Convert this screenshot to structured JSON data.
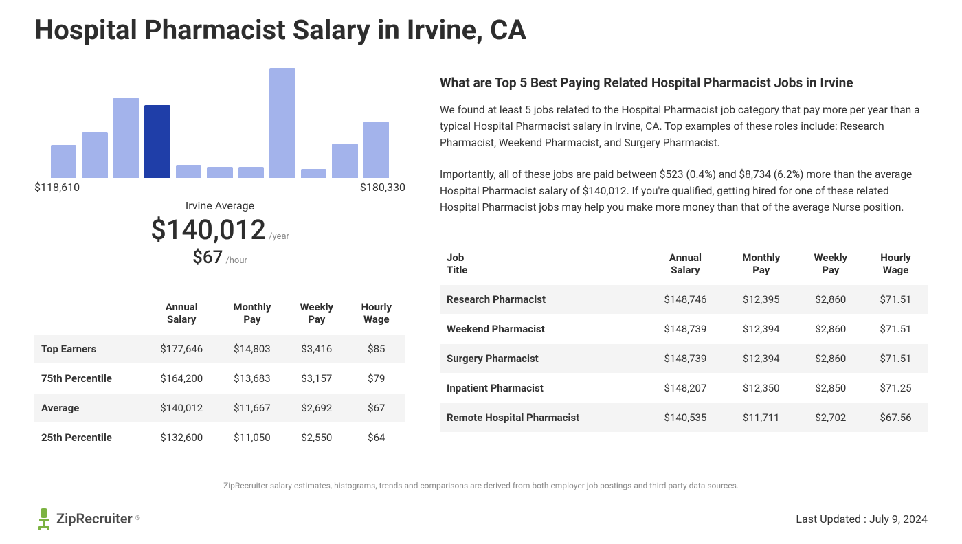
{
  "page_title": "Hospital Pharmacist Salary in Irvine, CA",
  "chart": {
    "type": "bar",
    "bar_heights_pct": [
      30,
      42,
      73,
      66,
      12,
      10,
      10,
      100,
      8,
      31,
      51
    ],
    "bar_colors": [
      "#a3b3eb",
      "#a3b3eb",
      "#a3b3eb",
      "#1f3ea8",
      "#a3b3eb",
      "#a3b3eb",
      "#a3b3eb",
      "#a3b3eb",
      "#a3b3eb",
      "#a3b3eb",
      "#a3b3eb"
    ],
    "min_label": "$118,610",
    "max_label": "$180,330",
    "center_label": "Irvine Average",
    "annual_value": "$140,012",
    "annual_unit": "/year",
    "hourly_value": "$67",
    "hourly_unit": "/hour",
    "background_color": "#ffffff"
  },
  "percentile_table": {
    "columns": [
      "",
      "Annual Salary",
      "Monthly Pay",
      "Weekly Pay",
      "Hourly Wage"
    ],
    "rows": [
      [
        "Top Earners",
        "$177,646",
        "$14,803",
        "$3,416",
        "$85"
      ],
      [
        "75th Percentile",
        "$164,200",
        "$13,683",
        "$3,157",
        "$79"
      ],
      [
        "Average",
        "$140,012",
        "$11,667",
        "$2,692",
        "$67"
      ],
      [
        "25th Percentile",
        "$132,600",
        "$11,050",
        "$2,550",
        "$64"
      ]
    ]
  },
  "related": {
    "heading": "What are Top 5 Best Paying Related Hospital Pharmacist Jobs in Irvine",
    "para1": "We found at least 5 jobs related to the Hospital Pharmacist job category that pay more per year than a typical Hospital Pharmacist salary in Irvine, CA. Top examples of these roles include: Research Pharmacist, Weekend Pharmacist, and Surgery Pharmacist.",
    "para2": "Importantly, all of these jobs are paid between $523 (0.4%) and $8,734 (6.2%) more than the average Hospital Pharmacist salary of $140,012. If you're qualified, getting hired for one of these related Hospital Pharmacist jobs may help you make more money than that of the average Nurse position."
  },
  "jobs_table": {
    "columns": [
      "Job Title",
      "Annual Salary",
      "Monthly Pay",
      "Weekly Pay",
      "Hourly Wage"
    ],
    "rows": [
      [
        "Research Pharmacist",
        "$148,746",
        "$12,395",
        "$2,860",
        "$71.51"
      ],
      [
        "Weekend Pharmacist",
        "$148,739",
        "$12,394",
        "$2,860",
        "$71.51"
      ],
      [
        "Surgery Pharmacist",
        "$148,739",
        "$12,394",
        "$2,860",
        "$71.51"
      ],
      [
        "Inpatient Pharmacist",
        "$148,207",
        "$12,350",
        "$2,850",
        "$71.25"
      ],
      [
        "Remote Hospital Pharmacist",
        "$140,535",
        "$11,711",
        "$2,702",
        "$67.56"
      ]
    ]
  },
  "footnote": "ZipRecruiter salary estimates, histograms, trends and comparisons are derived from both employer job postings and third party data sources.",
  "brand": {
    "name": "ZipRecruiter",
    "accent_color": "#7cb342"
  },
  "last_updated_label": "Last Updated : July 9, 2024"
}
